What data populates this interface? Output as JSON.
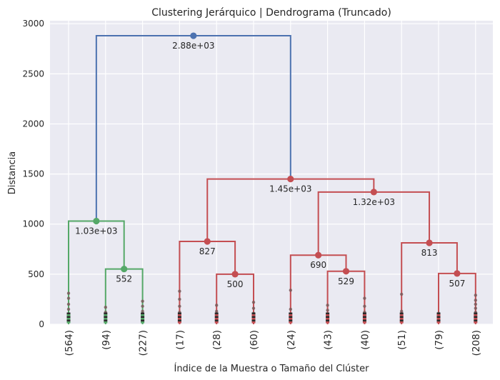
{
  "colors": {
    "background": "#eaeaf2",
    "grid": "#ffffff",
    "root": "#4c72b0",
    "cluster_green": "#55a868",
    "cluster_red": "#c44e52"
  },
  "chart_data": {
    "type": "dendrogram",
    "title": "Clustering Jerárquico | Dendrograma (Truncado)",
    "xlabel": "Índice de la Muestra o Tamaño del Clúster",
    "ylabel": "Distancia",
    "ylim": [
      0,
      3030
    ],
    "yticks": [
      0,
      500,
      1000,
      1500,
      2000,
      2500,
      3000
    ],
    "leaves": [
      "(564)",
      "(94)",
      "(227)",
      "(17)",
      "(28)",
      "(60)",
      "(24)",
      "(43)",
      "(40)",
      "(51)",
      "(79)",
      "(208)"
    ],
    "merges": [
      {
        "id": "m_552",
        "left": "leaf:1",
        "right": "leaf:2",
        "height": 552,
        "label": "552",
        "color": "green"
      },
      {
        "id": "m_1030",
        "left": "leaf:0",
        "right": "m_552",
        "height": 1030,
        "label": "1.03e+03",
        "color": "green"
      },
      {
        "id": "m_500",
        "left": "leaf:4",
        "right": "leaf:5",
        "height": 500,
        "label": "500",
        "color": "red"
      },
      {
        "id": "m_827",
        "left": "leaf:3",
        "right": "m_500",
        "height": 827,
        "label": "827",
        "color": "red"
      },
      {
        "id": "m_529",
        "left": "leaf:7",
        "right": "leaf:8",
        "height": 529,
        "label": "529",
        "color": "red"
      },
      {
        "id": "m_690",
        "left": "leaf:6",
        "right": "m_529",
        "height": 690,
        "label": "690",
        "color": "red"
      },
      {
        "id": "m_507",
        "left": "leaf:10",
        "right": "leaf:11",
        "height": 507,
        "label": "507",
        "color": "red"
      },
      {
        "id": "m_813",
        "left": "leaf:9",
        "right": "m_507",
        "height": 813,
        "label": "813",
        "color": "red"
      },
      {
        "id": "m_1320",
        "left": "m_690",
        "right": "m_813",
        "height": 1320,
        "label": "1.32e+03",
        "color": "red"
      },
      {
        "id": "m_1450",
        "left": "m_827",
        "right": "m_1320",
        "height": 1450,
        "label": "1.45e+03",
        "color": "red"
      },
      {
        "id": "m_2880",
        "left": "m_1030",
        "right": "m_1450",
        "height": 2880,
        "label": "2.88e+03",
        "color": "root"
      }
    ],
    "leaf_dot_heights": [
      [
        310,
        260,
        200,
        150,
        100
      ],
      [
        170,
        120,
        80
      ],
      [
        230,
        180,
        130,
        90
      ],
      [
        330,
        250,
        180,
        120
      ],
      [
        190,
        130,
        90
      ],
      [
        220,
        160,
        110
      ],
      [
        340,
        150,
        100
      ],
      [
        190,
        140,
        100
      ],
      [
        260,
        180,
        120
      ],
      [
        300,
        130,
        90
      ],
      [
        110,
        70
      ],
      [
        290,
        240,
        200,
        160,
        120
      ]
    ],
    "grid": true
  }
}
